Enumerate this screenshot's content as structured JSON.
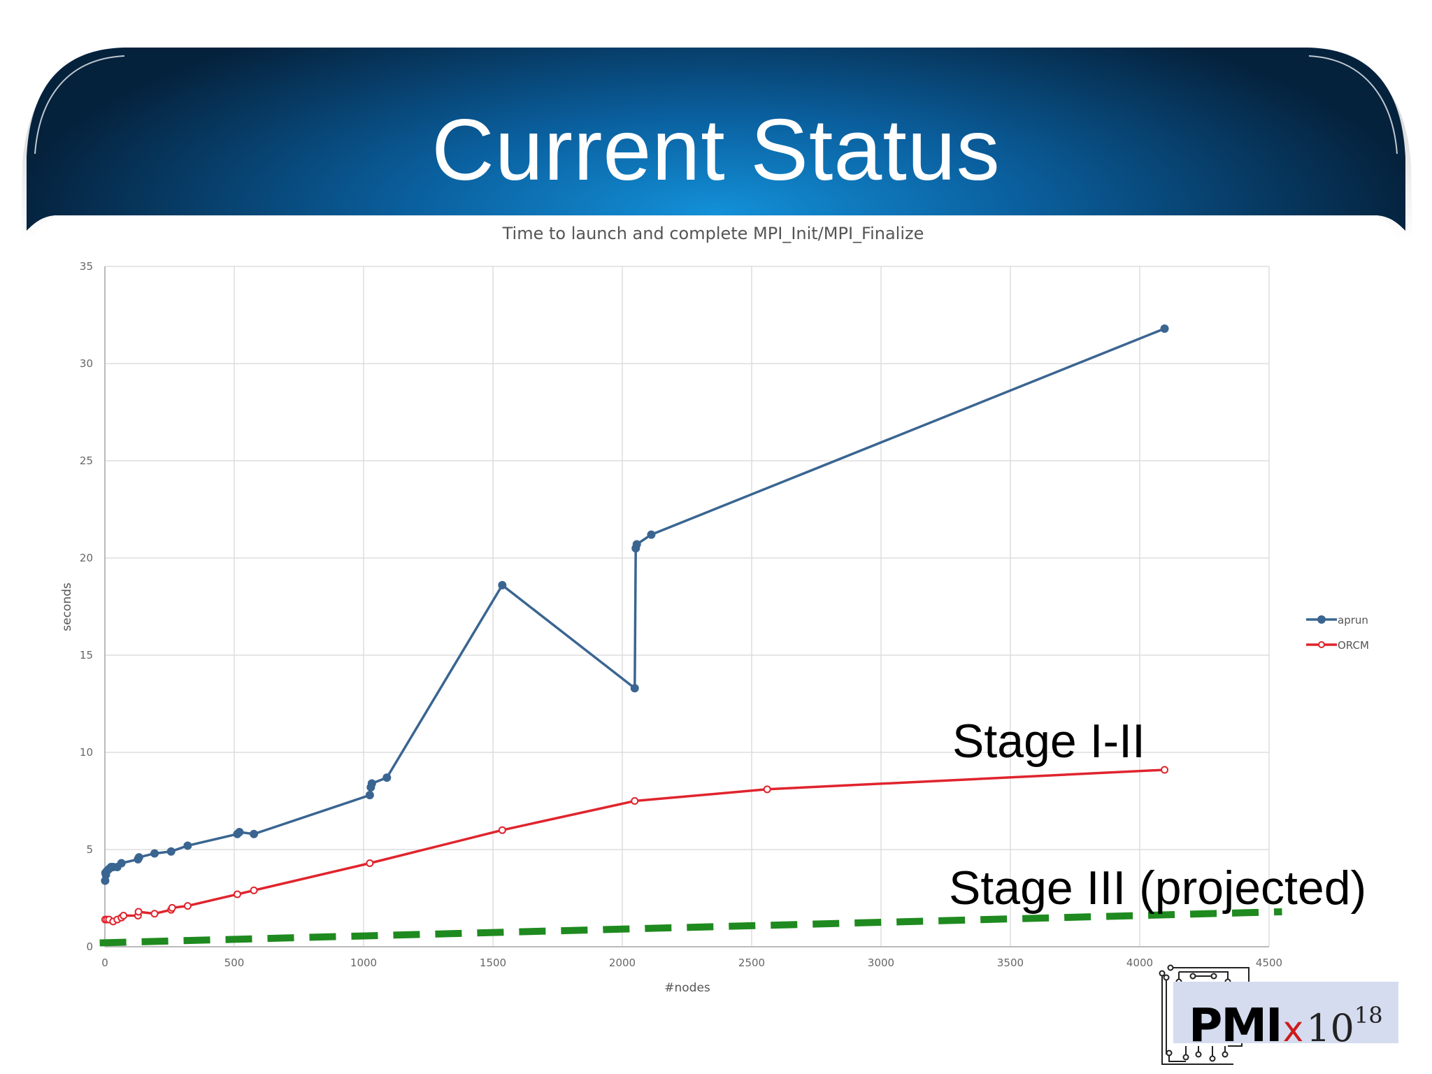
{
  "slide": {
    "title": "Current Status",
    "colors": {
      "banner_dark": "#05223d",
      "banner_mid": "#0a5e9c",
      "banner_glow": "#1390d8"
    }
  },
  "chart_data": {
    "type": "line",
    "title": "Time to launch and complete MPI_Init/MPI_Finalize",
    "xlabel": "#nodes",
    "ylabel": "seconds",
    "xlim": [
      0,
      4500
    ],
    "ylim": [
      0,
      35
    ],
    "x_ticks": [
      "0",
      "500",
      "1000",
      "1500",
      "2000",
      "2500",
      "3000",
      "3500",
      "4000",
      "4500"
    ],
    "y_ticks": [
      "0",
      "5",
      "10",
      "15",
      "20",
      "25",
      "30",
      "35"
    ],
    "grid": true,
    "legend_position": "right",
    "series": [
      {
        "name": "aprun",
        "color": "#3a6591",
        "marker": "filled-circle",
        "points": [
          [
            1,
            3.4
          ],
          [
            2,
            3.8
          ],
          [
            4,
            3.7
          ],
          [
            8,
            3.9
          ],
          [
            16,
            4.0
          ],
          [
            24,
            4.1
          ],
          [
            32,
            4.1
          ],
          [
            48,
            4.1
          ],
          [
            64,
            4.3
          ],
          [
            128,
            4.5
          ],
          [
            132,
            4.6
          ],
          [
            192,
            4.8
          ],
          [
            256,
            4.9
          ],
          [
            320,
            5.2
          ],
          [
            512,
            5.8
          ],
          [
            520,
            5.9
          ],
          [
            576,
            5.8
          ],
          [
            1024,
            7.8
          ],
          [
            1028,
            8.2
          ],
          [
            1032,
            8.4
          ],
          [
            1090,
            8.7
          ],
          [
            1536,
            18.6
          ],
          [
            2048,
            13.3
          ],
          [
            2052,
            20.5
          ],
          [
            2056,
            20.7
          ],
          [
            2112,
            21.2
          ],
          [
            4096,
            31.8
          ]
        ]
      },
      {
        "name": "ORCM",
        "color": "#e0242d",
        "marker": "open-circle",
        "points": [
          [
            1,
            1.4
          ],
          [
            8,
            1.4
          ],
          [
            16,
            1.4
          ],
          [
            32,
            1.3
          ],
          [
            48,
            1.4
          ],
          [
            64,
            1.5
          ],
          [
            72,
            1.6
          ],
          [
            128,
            1.6
          ],
          [
            130,
            1.8
          ],
          [
            192,
            1.7
          ],
          [
            256,
            1.9
          ],
          [
            260,
            2.0
          ],
          [
            320,
            2.1
          ],
          [
            512,
            2.7
          ],
          [
            576,
            2.9
          ],
          [
            1024,
            4.3
          ],
          [
            1536,
            6.0
          ],
          [
            2048,
            7.5
          ],
          [
            2560,
            8.1
          ],
          [
            4096,
            9.1
          ]
        ]
      }
    ],
    "annotations": [
      {
        "id": "stage_1",
        "text": "Stage I-II"
      },
      {
        "id": "stage_3",
        "text": "Stage III (projected)"
      }
    ],
    "projection_line": {
      "color": "#1f8a1f",
      "style": "dashed",
      "points": [
        [
          -20,
          0.2
        ],
        [
          4550,
          1.8
        ]
      ]
    }
  },
  "logo": {
    "word": "PMI",
    "times": "x",
    "base": "10",
    "exponent": "18",
    "panel_color": "#d5dcf0",
    "accent_color": "#cc1b1b"
  }
}
